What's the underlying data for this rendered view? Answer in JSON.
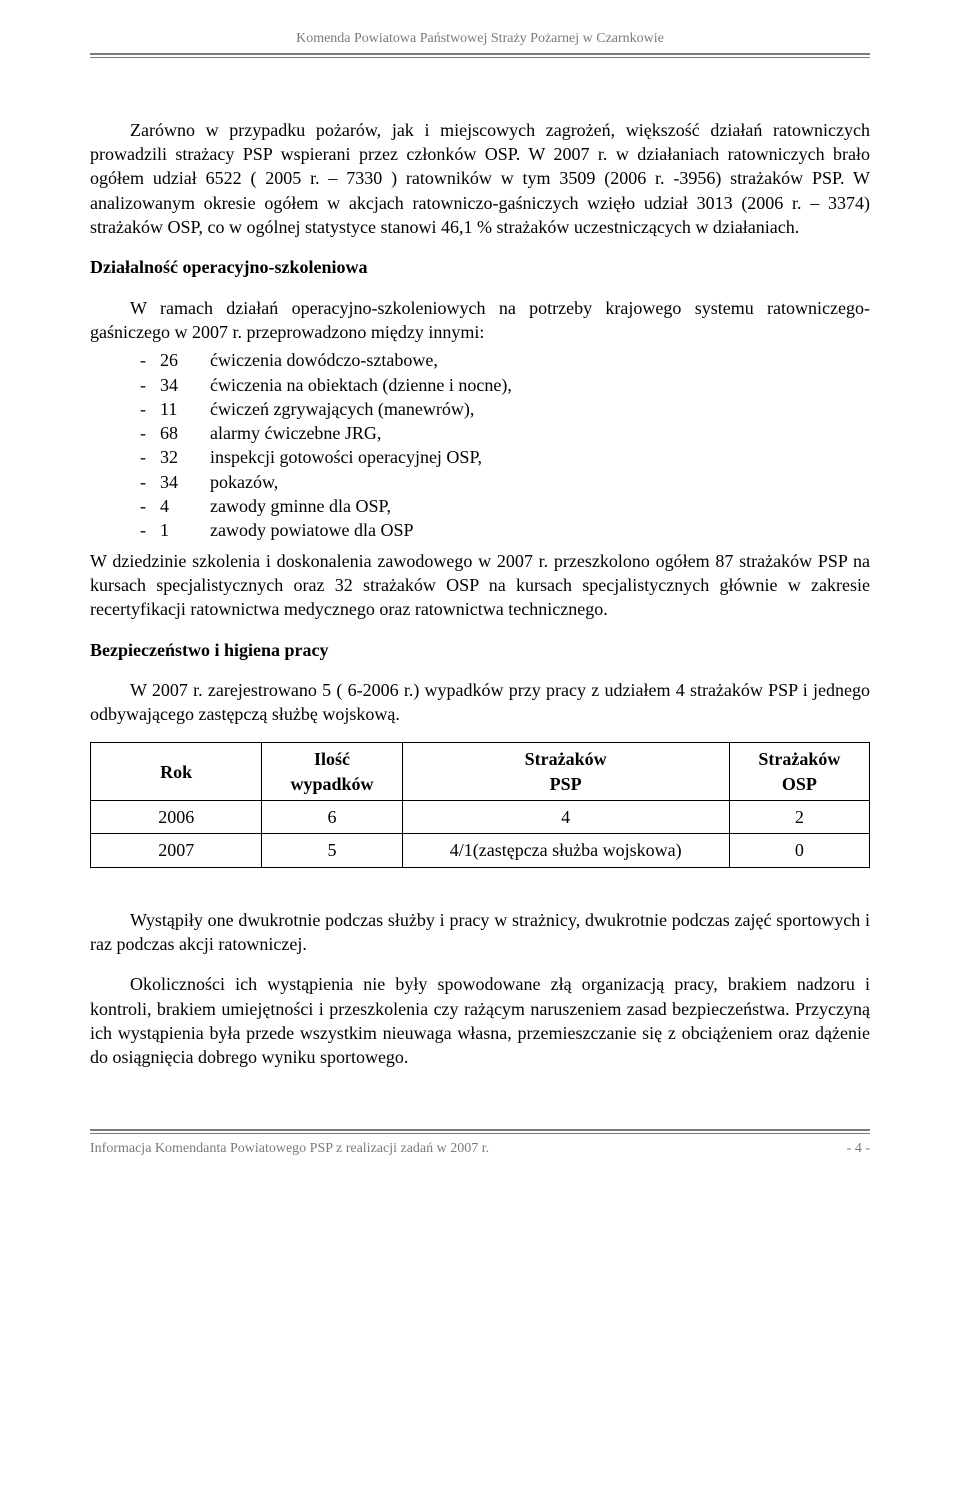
{
  "header": {
    "text": "Komenda Powiatowa Państwowej Straży Pożarnej w Czarnkowie",
    "color": "#7a7a7a",
    "fontsize": 14
  },
  "p1": "Zarówno w przypadku pożarów, jak i miejscowych zagrożeń, większość działań ratowniczych prowadzili strażacy PSP wspierani przez członków OSP. W 2007 r. w działaniach ratowniczych brało ogółem udział 6522 ( 2005 r. – 7330 ) ratowników w tym 3509 (2006 r. -3956) strażaków PSP. W analizowanym okresie ogółem w akcjach ratowniczo-gaśniczych wzięło udział  3013 (2006 r. – 3374) strażaków OSP, co w ogólnej statystyce stanowi 46,1 % strażaków uczestniczących w działaniach.",
  "section1_title": "Działalność operacyjno-szkoleniowa",
  "p2": "W ramach działań operacyjno-szkoleniowych na potrzeby krajowego systemu ratowniczego-gaśniczego w 2007 r. przeprowadzono między innymi:",
  "training_list": [
    {
      "count": "26",
      "label": "ćwiczenia dowódczo-sztabowe,"
    },
    {
      "count": "34",
      "label": "ćwiczenia na obiektach (dzienne i nocne),"
    },
    {
      "count": "11",
      "label": "ćwiczeń zgrywających (manewrów),"
    },
    {
      "count": "68",
      "label": " alarmy ćwiczebne JRG,"
    },
    {
      "count": "32",
      "label": "inspekcji gotowości operacyjnej OSP,"
    },
    {
      "count": "34",
      "label": " pokazów,"
    },
    {
      "count": "4",
      "label": "zawody gminne  dla OSP,"
    },
    {
      "count": "1",
      "label": "zawody powiatowe dla OSP"
    }
  ],
  "p3": "W dziedzinie szkolenia i doskonalenia zawodowego w 2007 r. przeszkolono ogółem   87 strażaków PSP na kursach specjalistycznych oraz 32 strażaków OSP na kursach specjalistycznych głównie w zakresie recertyfikacji ratownictwa medycznego oraz ratownictwa technicznego.",
  "section2_title": "Bezpieczeństwo i higiena pracy",
  "p4": "W 2007 r. zarejestrowano 5 ( 6-2006 r.) wypadków przy pracy z udziałem 4 strażaków PSP i jednego odbywającego zastępczą służbę wojskową.",
  "accidents_table": {
    "columns": [
      "Rok",
      "Ilość wypadków",
      "Strażaków PSP",
      "Strażaków OSP"
    ],
    "col_widths": [
      "22%",
      "18%",
      "42%",
      "18%"
    ],
    "rows": [
      [
        "2006",
        "6",
        "4",
        "2"
      ],
      [
        "2007",
        "5",
        "4/1(zastępcza służba wojskowa)",
        "0"
      ]
    ],
    "border_color": "#000000"
  },
  "p5": "Wystąpiły one  dwukrotnie podczas służby i pracy w strażnicy, dwukrotnie podczas zajęć sportowych i raz podczas akcji ratowniczej.",
  "p6": "Okoliczności ich wystąpienia  nie były spowodowane złą organizacją pracy, brakiem nadzoru i kontroli, brakiem umiejętności i przeszkolenia czy rażącym naruszeniem zasad bezpieczeństwa.  Przyczyną ich wystąpienia była przede wszystkim nieuwaga własna, przemieszczanie się z obciążeniem oraz dążenie do osiągnięcia dobrego wyniku sportowego.",
  "footer": {
    "left": "Informacja  Komendanta Powiatowego PSP z realizacji zadań w 2007 r.",
    "right": "- 4 -",
    "color": "#7a7a7a",
    "fontsize": 14
  }
}
